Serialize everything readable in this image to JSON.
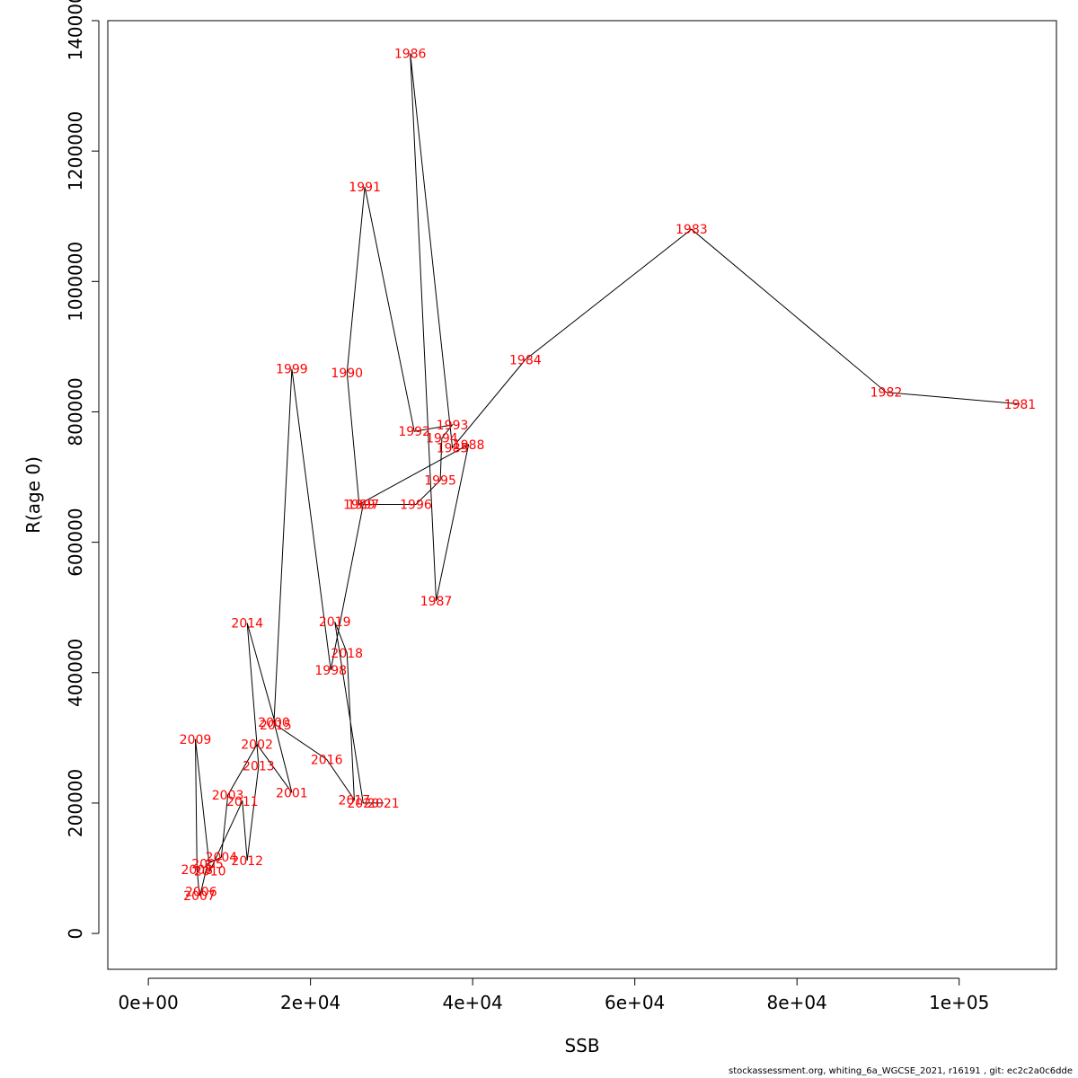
{
  "chart_data": {
    "type": "line",
    "xlabel": "SSB",
    "ylabel": "R(age 0)",
    "xlim": [
      -5000,
      112000
    ],
    "ylim": [
      -55000,
      1400000
    ],
    "x_ticks": [
      0,
      20000,
      40000,
      60000,
      80000,
      100000
    ],
    "x_tick_labels": [
      "0e+00",
      "2e+04",
      "4e+04",
      "6e+04",
      "8e+04",
      "1e+05"
    ],
    "y_ticks": [
      0,
      200000,
      400000,
      600000,
      800000,
      1000000,
      1200000,
      1400000
    ],
    "y_tick_labels": [
      "0",
      "200000",
      "400000",
      "600000",
      "800000",
      "1000000",
      "1200000",
      "1400000"
    ],
    "points": [
      {
        "year": "1981",
        "ssb": 107500,
        "r": 812000
      },
      {
        "year": "1982",
        "ssb": 91000,
        "r": 830000
      },
      {
        "year": "1983",
        "ssb": 67000,
        "r": 1080000
      },
      {
        "year": "1984",
        "ssb": 46500,
        "r": 880000
      },
      {
        "year": "1985",
        "ssb": 37500,
        "r": 745000
      },
      {
        "year": "1986",
        "ssb": 32300,
        "r": 1350000
      },
      {
        "year": "1987",
        "ssb": 35500,
        "r": 510000
      },
      {
        "year": "1988",
        "ssb": 39500,
        "r": 750000
      },
      {
        "year": "1989",
        "ssb": 26000,
        "r": 658000
      },
      {
        "year": "1990",
        "ssb": 24500,
        "r": 860000
      },
      {
        "year": "1991",
        "ssb": 26700,
        "r": 1145000
      },
      {
        "year": "1992",
        "ssb": 32800,
        "r": 770000
      },
      {
        "year": "1993",
        "ssb": 37500,
        "r": 780000
      },
      {
        "year": "1994",
        "ssb": 36200,
        "r": 760000
      },
      {
        "year": "1995",
        "ssb": 36000,
        "r": 695000
      },
      {
        "year": "1996",
        "ssb": 33000,
        "r": 658000
      },
      {
        "year": "1997",
        "ssb": 26500,
        "r": 658000
      },
      {
        "year": "1998",
        "ssb": 22500,
        "r": 404000
      },
      {
        "year": "1999",
        "ssb": 17700,
        "r": 866000
      },
      {
        "year": "2000",
        "ssb": 15500,
        "r": 324000
      },
      {
        "year": "2001",
        "ssb": 17700,
        "r": 216000
      },
      {
        "year": "2002",
        "ssb": 13400,
        "r": 290000
      },
      {
        "year": "2003",
        "ssb": 9800,
        "r": 212000
      },
      {
        "year": "2004",
        "ssb": 9000,
        "r": 117000
      },
      {
        "year": "2005",
        "ssb": 7300,
        "r": 107000
      },
      {
        "year": "2006",
        "ssb": 6500,
        "r": 64000
      },
      {
        "year": "2007",
        "ssb": 6300,
        "r": 58000
      },
      {
        "year": "2008",
        "ssb": 6000,
        "r": 98000
      },
      {
        "year": "2009",
        "ssb": 5800,
        "r": 298000
      },
      {
        "year": "2010",
        "ssb": 7600,
        "r": 96000
      },
      {
        "year": "2011",
        "ssb": 11600,
        "r": 203000
      },
      {
        "year": "2012",
        "ssb": 12200,
        "r": 112000
      },
      {
        "year": "2013",
        "ssb": 13600,
        "r": 257000
      },
      {
        "year": "2014",
        "ssb": 12200,
        "r": 476000
      },
      {
        "year": "2015",
        "ssb": 15700,
        "r": 320000
      },
      {
        "year": "2016",
        "ssb": 22000,
        "r": 267000
      },
      {
        "year": "2017",
        "ssb": 25400,
        "r": 205000
      },
      {
        "year": "2018",
        "ssb": 24500,
        "r": 430000
      },
      {
        "year": "2019",
        "ssb": 23000,
        "r": 478000
      },
      {
        "year": "2020",
        "ssb": 26500,
        "r": 200000
      },
      {
        "year": "2021",
        "ssb": 29000,
        "r": 200000
      }
    ]
  },
  "footer": "stockassessment.org, whiting_6a_WGCSE_2021, r16191 , git: ec2c2a0c6dde"
}
